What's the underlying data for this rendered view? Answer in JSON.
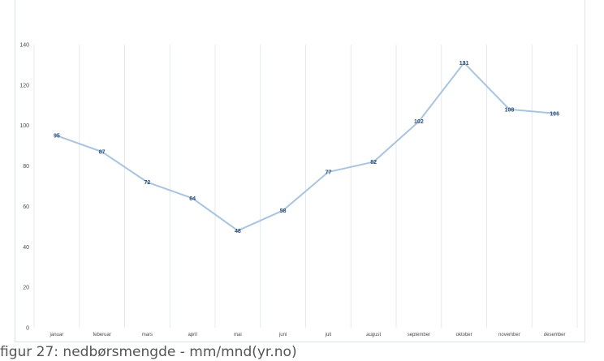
{
  "chart_data": {
    "type": "line",
    "categories": [
      "januar",
      "feberuar",
      "mars",
      "april",
      "mai",
      "juni",
      "juli",
      "august",
      "september",
      "oktober",
      "november",
      "desember"
    ],
    "series": [
      {
        "values": [
          95,
          87,
          72,
          64,
          48,
          58,
          77,
          82,
          102,
          131,
          108,
          106
        ]
      }
    ],
    "ylim": [
      0,
      140
    ],
    "yticks": [
      0,
      20,
      40,
      60,
      80,
      100,
      120,
      140
    ],
    "grid": "vertical",
    "data_labels": true,
    "line_color": "#a9c4e0",
    "label_color": "#2f4f7a"
  },
  "caption": "figur 27: nedbørsmengde - mm/mnd(yr.no)"
}
